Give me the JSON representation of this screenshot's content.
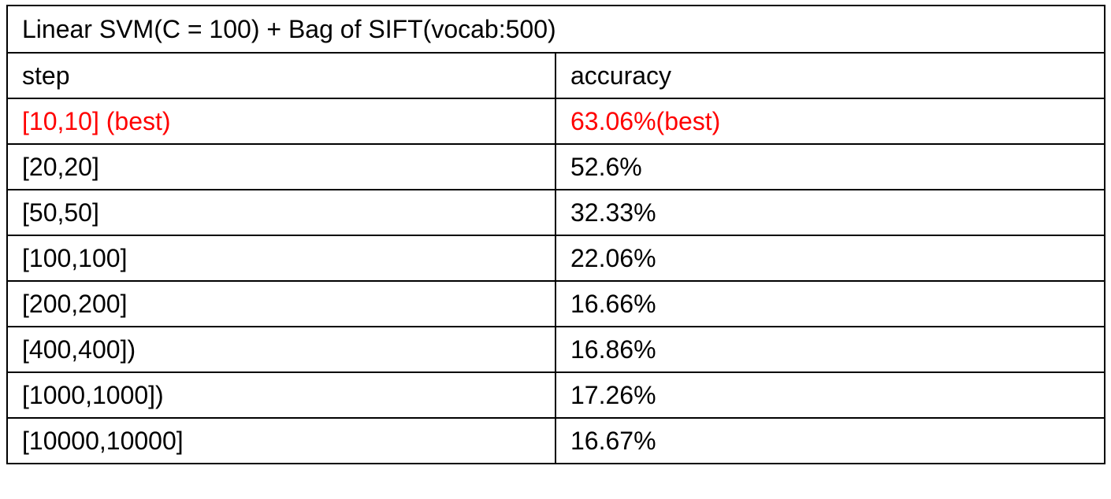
{
  "table": {
    "title": "Linear SVM(C = 100) + Bag of SIFT(vocab:500)",
    "headers": {
      "step": "step",
      "accuracy": "accuracy"
    },
    "highlight_color": "#ff0000",
    "rows": [
      {
        "step": "[10,10] (best)",
        "accuracy": "63.06%(best)",
        "highlight": true
      },
      {
        "step": "[20,20]",
        "accuracy": "52.6%",
        "highlight": false
      },
      {
        "step": "[50,50]",
        "accuracy": "32.33%",
        "highlight": false
      },
      {
        "step": "[100,100]",
        "accuracy": "22.06%",
        "highlight": false
      },
      {
        "step": "[200,200]",
        "accuracy": "16.66%",
        "highlight": false
      },
      {
        "step": "[400,400])",
        "accuracy": "16.86%",
        "highlight": false
      },
      {
        "step": "[1000,1000])",
        "accuracy": "17.26%",
        "highlight": false
      },
      {
        "step": "[10000,10000]",
        "accuracy": "16.67%",
        "highlight": false
      }
    ]
  }
}
